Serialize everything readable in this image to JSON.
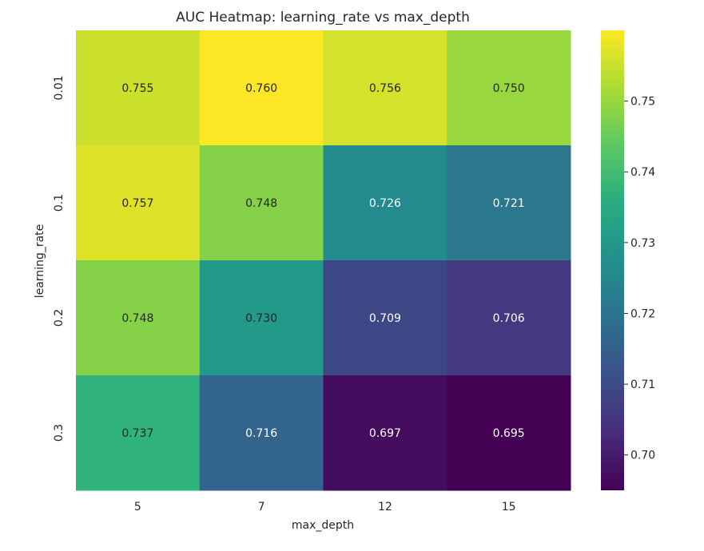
{
  "chart_data": {
    "type": "heatmap",
    "title": "AUC Heatmap: learning_rate vs max_depth",
    "xlabel": "max_depth",
    "ylabel": "learning_rate",
    "x_categories": [
      "5",
      "7",
      "12",
      "15"
    ],
    "y_categories": [
      "0.01",
      "0.1",
      "0.2",
      "0.3"
    ],
    "values": [
      [
        0.755,
        0.76,
        0.756,
        0.75
      ],
      [
        0.757,
        0.748,
        0.726,
        0.721
      ],
      [
        0.748,
        0.73,
        0.709,
        0.706
      ],
      [
        0.737,
        0.716,
        0.697,
        0.695
      ]
    ],
    "value_labels": [
      [
        "0.755",
        "0.760",
        "0.756",
        "0.750"
      ],
      [
        "0.757",
        "0.748",
        "0.726",
        "0.721"
      ],
      [
        "0.748",
        "0.730",
        "0.709",
        "0.706"
      ],
      [
        "0.737",
        "0.716",
        "0.697",
        "0.695"
      ]
    ],
    "colormap": "viridis",
    "color_range": [
      0.695,
      0.76
    ],
    "colorbar_ticks": [
      0.7,
      0.71,
      0.72,
      0.73,
      0.74,
      0.75
    ],
    "colorbar_tick_labels": [
      "0.70",
      "0.71",
      "0.72",
      "0.73",
      "0.74",
      "0.75"
    ],
    "grid": false
  }
}
